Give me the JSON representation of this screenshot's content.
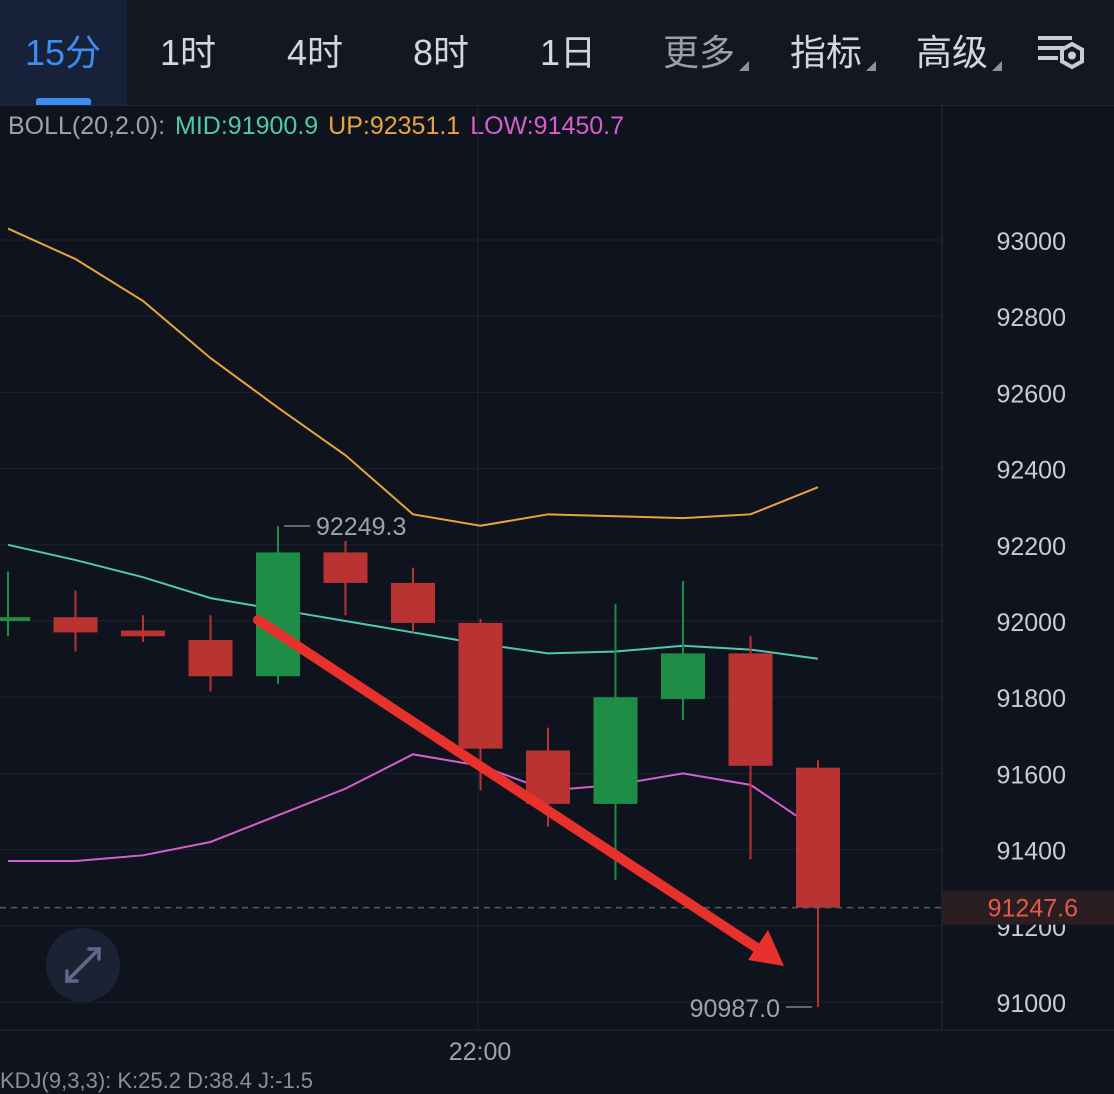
{
  "toolbar": {
    "tabs": [
      {
        "label": "15分",
        "active": true
      },
      {
        "label": "1时",
        "active": false
      },
      {
        "label": "4时",
        "active": false
      },
      {
        "label": "8时",
        "active": false
      },
      {
        "label": "1日",
        "active": false
      },
      {
        "label": "更多",
        "active": false,
        "dropdown": true
      },
      {
        "label": "指标",
        "active": false,
        "dropdown": true
      },
      {
        "label": "高级",
        "active": false,
        "dropdown": true
      }
    ],
    "settings_icon": "chart-settings-icon"
  },
  "indicator": {
    "name": "BOLL(20,2.0):",
    "mid_label": "MID:91900.9",
    "up_label": "UP:92351.1",
    "low_label": "LOW:91450.7"
  },
  "colors": {
    "up_candle": "#1e8e47",
    "down_candle": "#b93333",
    "boll_mid": "#4fc8ad",
    "boll_up": "#e9a43b",
    "boll_low": "#d65fcf",
    "arrow": "#e8312c",
    "active_tab": "#3d8cf0",
    "price_tag": "#e45a46"
  },
  "chart_data": {
    "type": "candlestick",
    "y_axis": {
      "ticks": [
        91000,
        91200,
        91400,
        91600,
        91800,
        92000,
        92200,
        92400,
        92600,
        92800,
        93000
      ],
      "range": [
        90920,
        93300
      ]
    },
    "x_axis": {
      "ticks": [
        "22:00"
      ]
    },
    "candles": [
      {
        "open": 92000,
        "close": 92010,
        "high": 92130,
        "low": 91960
      },
      {
        "open": 92010,
        "close": 91970,
        "high": 92080,
        "low": 91920
      },
      {
        "open": 91975,
        "close": 91960,
        "high": 92015,
        "low": 91945
      },
      {
        "open": 91950,
        "close": 91855,
        "high": 92015,
        "low": 91815
      },
      {
        "open": 91855,
        "close": 92180,
        "high": 92249.3,
        "low": 91835
      },
      {
        "open": 92180,
        "close": 92100,
        "high": 92210,
        "low": 92015
      },
      {
        "open": 92100,
        "close": 91995,
        "high": 92140,
        "low": 91970
      },
      {
        "open": 91995,
        "close": 91665,
        "high": 92005,
        "low": 91555
      },
      {
        "open": 91660,
        "close": 91520,
        "high": 91720,
        "low": 91460
      },
      {
        "open": 91520,
        "close": 91800,
        "high": 92045,
        "low": 91320
      },
      {
        "open": 91795,
        "close": 91915,
        "high": 92105,
        "low": 91740
      },
      {
        "open": 91915,
        "close": 91620,
        "high": 91960,
        "low": 91375
      },
      {
        "open": 91615,
        "close": 91247.6,
        "high": 91635,
        "low": 90987.0
      }
    ],
    "boll_mid": [
      92200,
      92160,
      92115,
      92060,
      92030,
      92000,
      91970,
      91940,
      91915,
      91920,
      91935,
      91925,
      91900.9
    ],
    "boll_up": [
      93030,
      92950,
      92840,
      92690,
      92560,
      92435,
      92280,
      92250,
      92280,
      92275,
      92270,
      92280,
      92351.1
    ],
    "boll_low": [
      91370,
      91370,
      91385,
      91420,
      91490,
      91560,
      91650,
      91620,
      91555,
      91570,
      91600,
      91570,
      91450.7
    ],
    "annotations": {
      "high_label": "92249.3",
      "low_label": "90987.0",
      "current_price": "91247.6"
    }
  },
  "kdj": {
    "text": "KDJ(9,3,3): K:25.2 D:38.4 J:-1.5"
  }
}
